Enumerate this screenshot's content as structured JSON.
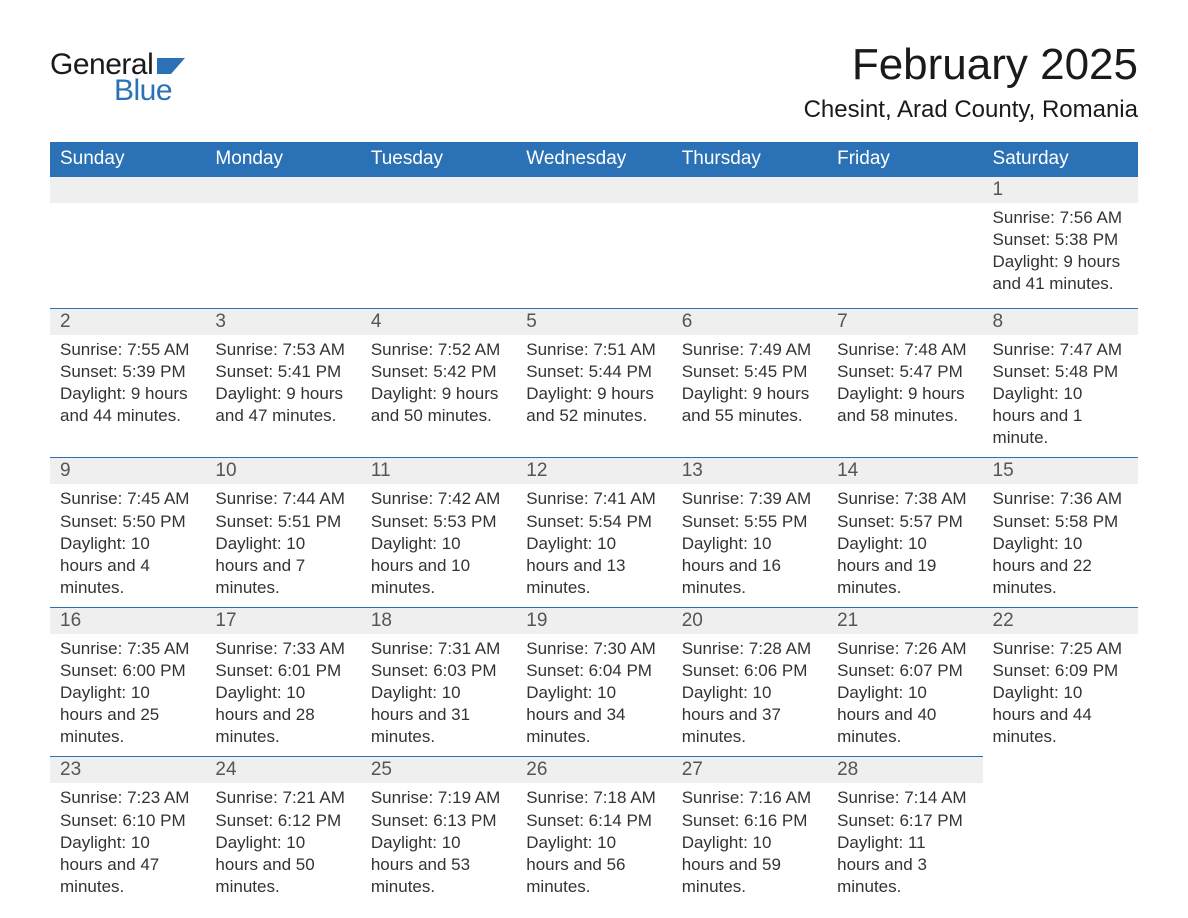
{
  "brand": {
    "text1": "General",
    "text2": "Blue",
    "flag_color": "#2a72b5",
    "text1_color": "#1a1a1a",
    "text2_color": "#2a72b5"
  },
  "title": "February 2025",
  "location": "Chesint, Arad County, Romania",
  "columns": [
    "Sunday",
    "Monday",
    "Tuesday",
    "Wednesday",
    "Thursday",
    "Friday",
    "Saturday"
  ],
  "colors": {
    "header_bg": "#2a72b5",
    "header_text": "#ffffff",
    "daynum_bg": "#efefef",
    "daynum_border": "#2a72b5",
    "body_text": "#333333",
    "page_bg": "#ffffff"
  },
  "fonts": {
    "title_size_pt": 33,
    "location_size_pt": 18,
    "header_size_pt": 14,
    "daynum_size_pt": 14,
    "content_size_pt": 13
  },
  "weeks": [
    [
      null,
      null,
      null,
      null,
      null,
      null,
      {
        "n": "1",
        "sunrise": "Sunrise: 7:56 AM",
        "sunset": "Sunset: 5:38 PM",
        "daylight": "Daylight: 9 hours and 41 minutes."
      }
    ],
    [
      {
        "n": "2",
        "sunrise": "Sunrise: 7:55 AM",
        "sunset": "Sunset: 5:39 PM",
        "daylight": "Daylight: 9 hours and 44 minutes."
      },
      {
        "n": "3",
        "sunrise": "Sunrise: 7:53 AM",
        "sunset": "Sunset: 5:41 PM",
        "daylight": "Daylight: 9 hours and 47 minutes."
      },
      {
        "n": "4",
        "sunrise": "Sunrise: 7:52 AM",
        "sunset": "Sunset: 5:42 PM",
        "daylight": "Daylight: 9 hours and 50 minutes."
      },
      {
        "n": "5",
        "sunrise": "Sunrise: 7:51 AM",
        "sunset": "Sunset: 5:44 PM",
        "daylight": "Daylight: 9 hours and 52 minutes."
      },
      {
        "n": "6",
        "sunrise": "Sunrise: 7:49 AM",
        "sunset": "Sunset: 5:45 PM",
        "daylight": "Daylight: 9 hours and 55 minutes."
      },
      {
        "n": "7",
        "sunrise": "Sunrise: 7:48 AM",
        "sunset": "Sunset: 5:47 PM",
        "daylight": "Daylight: 9 hours and 58 minutes."
      },
      {
        "n": "8",
        "sunrise": "Sunrise: 7:47 AM",
        "sunset": "Sunset: 5:48 PM",
        "daylight": "Daylight: 10 hours and 1 minute."
      }
    ],
    [
      {
        "n": "9",
        "sunrise": "Sunrise: 7:45 AM",
        "sunset": "Sunset: 5:50 PM",
        "daylight": "Daylight: 10 hours and 4 minutes."
      },
      {
        "n": "10",
        "sunrise": "Sunrise: 7:44 AM",
        "sunset": "Sunset: 5:51 PM",
        "daylight": "Daylight: 10 hours and 7 minutes."
      },
      {
        "n": "11",
        "sunrise": "Sunrise: 7:42 AM",
        "sunset": "Sunset: 5:53 PM",
        "daylight": "Daylight: 10 hours and 10 minutes."
      },
      {
        "n": "12",
        "sunrise": "Sunrise: 7:41 AM",
        "sunset": "Sunset: 5:54 PM",
        "daylight": "Daylight: 10 hours and 13 minutes."
      },
      {
        "n": "13",
        "sunrise": "Sunrise: 7:39 AM",
        "sunset": "Sunset: 5:55 PM",
        "daylight": "Daylight: 10 hours and 16 minutes."
      },
      {
        "n": "14",
        "sunrise": "Sunrise: 7:38 AM",
        "sunset": "Sunset: 5:57 PM",
        "daylight": "Daylight: 10 hours and 19 minutes."
      },
      {
        "n": "15",
        "sunrise": "Sunrise: 7:36 AM",
        "sunset": "Sunset: 5:58 PM",
        "daylight": "Daylight: 10 hours and 22 minutes."
      }
    ],
    [
      {
        "n": "16",
        "sunrise": "Sunrise: 7:35 AM",
        "sunset": "Sunset: 6:00 PM",
        "daylight": "Daylight: 10 hours and 25 minutes."
      },
      {
        "n": "17",
        "sunrise": "Sunrise: 7:33 AM",
        "sunset": "Sunset: 6:01 PM",
        "daylight": "Daylight: 10 hours and 28 minutes."
      },
      {
        "n": "18",
        "sunrise": "Sunrise: 7:31 AM",
        "sunset": "Sunset: 6:03 PM",
        "daylight": "Daylight: 10 hours and 31 minutes."
      },
      {
        "n": "19",
        "sunrise": "Sunrise: 7:30 AM",
        "sunset": "Sunset: 6:04 PM",
        "daylight": "Daylight: 10 hours and 34 minutes."
      },
      {
        "n": "20",
        "sunrise": "Sunrise: 7:28 AM",
        "sunset": "Sunset: 6:06 PM",
        "daylight": "Daylight: 10 hours and 37 minutes."
      },
      {
        "n": "21",
        "sunrise": "Sunrise: 7:26 AM",
        "sunset": "Sunset: 6:07 PM",
        "daylight": "Daylight: 10 hours and 40 minutes."
      },
      {
        "n": "22",
        "sunrise": "Sunrise: 7:25 AM",
        "sunset": "Sunset: 6:09 PM",
        "daylight": "Daylight: 10 hours and 44 minutes."
      }
    ],
    [
      {
        "n": "23",
        "sunrise": "Sunrise: 7:23 AM",
        "sunset": "Sunset: 6:10 PM",
        "daylight": "Daylight: 10 hours and 47 minutes."
      },
      {
        "n": "24",
        "sunrise": "Sunrise: 7:21 AM",
        "sunset": "Sunset: 6:12 PM",
        "daylight": "Daylight: 10 hours and 50 minutes."
      },
      {
        "n": "25",
        "sunrise": "Sunrise: 7:19 AM",
        "sunset": "Sunset: 6:13 PM",
        "daylight": "Daylight: 10 hours and 53 minutes."
      },
      {
        "n": "26",
        "sunrise": "Sunrise: 7:18 AM",
        "sunset": "Sunset: 6:14 PM",
        "daylight": "Daylight: 10 hours and 56 minutes."
      },
      {
        "n": "27",
        "sunrise": "Sunrise: 7:16 AM",
        "sunset": "Sunset: 6:16 PM",
        "daylight": "Daylight: 10 hours and 59 minutes."
      },
      {
        "n": "28",
        "sunrise": "Sunrise: 7:14 AM",
        "sunset": "Sunset: 6:17 PM",
        "daylight": "Daylight: 11 hours and 3 minutes."
      },
      null
    ]
  ]
}
